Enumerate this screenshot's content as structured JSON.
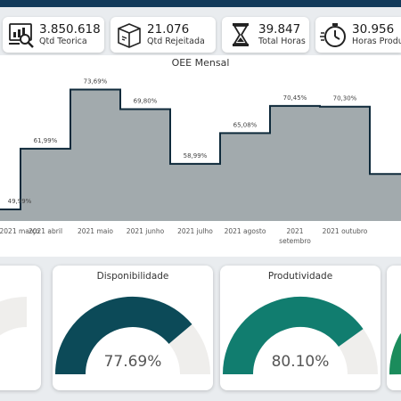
{
  "kpis": [
    {
      "value": "3.850.618",
      "label": "Qtd Teorica",
      "icon": "analytics-icon"
    },
    {
      "value": "21.076",
      "label": "Qtd Rejeitada",
      "icon": "box-icon"
    },
    {
      "value": "39.847",
      "label": "Total Horas",
      "icon": "hourglass-icon"
    },
    {
      "value": "30.956",
      "label": "Horas Produ",
      "icon": "stopwatch-icon"
    }
  ],
  "chart_data": {
    "type": "area",
    "title": "OEE Mensal",
    "categories": [
      "2021 março",
      "2021 abril",
      "2021 maio",
      "2021 junho",
      "2021 julho",
      "2021 agosto",
      "2021 setembro",
      "2021 outubro"
    ],
    "values": [
      49.99,
      61.99,
      73.69,
      69.8,
      58.99,
      65.08,
      70.45,
      70.3
    ],
    "data_labels": [
      "49,99%",
      "61,99%",
      "73,69%",
      "69,80%",
      "58,99%",
      "65,08%",
      "70,45%",
      "70,30%"
    ],
    "step": true,
    "fill_color": "#a2aaad",
    "line_color": "#0f2a3b"
  },
  "gauges": [
    {
      "title": "Disponibilidade",
      "value": 77.69,
      "value_text": "77.69%",
      "color": "#0c4a58"
    },
    {
      "title": "Produtividade",
      "value": 80.1,
      "value_text": "80.10%",
      "color": "#117d6f"
    }
  ],
  "colors": {
    "topbar": "#123a5a",
    "gauge_track": "#efeeec",
    "partial_gauge": "#1b8c5c"
  }
}
